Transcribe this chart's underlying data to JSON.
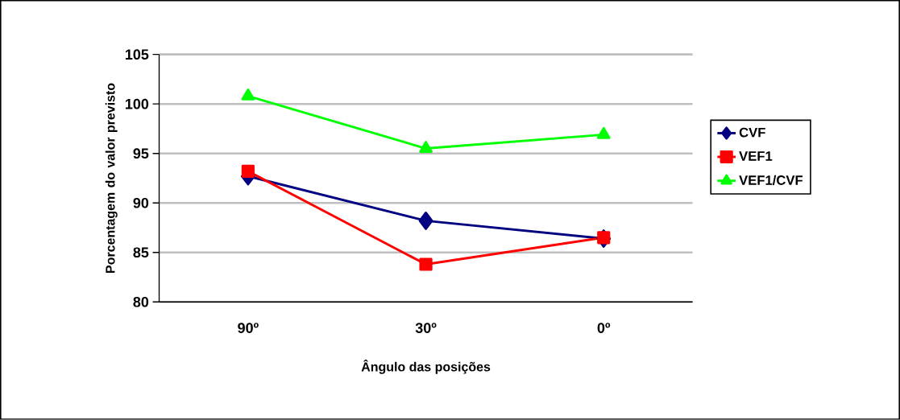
{
  "chart_data": {
    "type": "line",
    "xlabel": "Ângulo das posições",
    "ylabel": "Porcentagem do valor previsto",
    "categories": [
      "90º",
      "30º",
      "0º"
    ],
    "series": [
      {
        "name": "CVF",
        "color": "#000080",
        "marker": "diamond",
        "values": [
          92.7,
          88.2,
          86.4
        ]
      },
      {
        "name": "VEF1",
        "color": "#ff0000",
        "marker": "square",
        "values": [
          93.2,
          83.8,
          86.5
        ]
      },
      {
        "name": "VEF1/CVF",
        "color": "#00ff00",
        "marker": "triangle",
        "values": [
          100.8,
          95.5,
          96.9
        ]
      }
    ],
    "ylim": [
      80,
      105
    ],
    "yticks": [
      80,
      85,
      90,
      95,
      100,
      105
    ],
    "grid": "y",
    "legend": "right"
  }
}
